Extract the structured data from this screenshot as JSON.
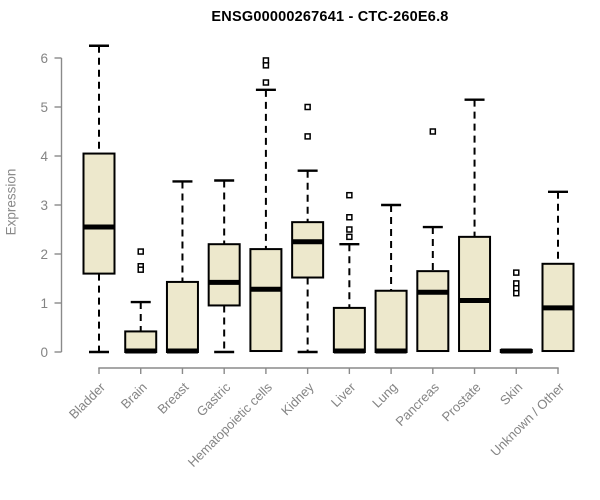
{
  "header": {
    "title": "ENSG00000267641 - CTC-260E6.8"
  },
  "colors": {
    "background": "#FFFFFF",
    "box_fill": "#EDE8CC",
    "box_stroke": "#000000",
    "median_stroke": "#000000",
    "axis": "#8A8A8A",
    "tick_label": "#848484",
    "title_text": "#000000"
  },
  "chart_data": {
    "type": "boxplot",
    "title": "ENSG00000267641 - CTC-260E6.8",
    "xlabel": "",
    "ylabel": "Expression",
    "ylim": [
      0,
      6
    ],
    "yticks": [
      0,
      1,
      2,
      3,
      4,
      5,
      6
    ],
    "grid": false,
    "legend": "none",
    "categories": [
      "Bladder",
      "Brain",
      "Breast",
      "Gastric",
      "Hematopoietic cells",
      "Kidney",
      "Liver",
      "Lung",
      "Pancreas",
      "Prostate",
      "Skin",
      "Unknown / Other"
    ],
    "boxes": [
      {
        "label": "Bladder",
        "whisker_low": 0,
        "q1": 1.6,
        "median": 2.55,
        "q3": 4.05,
        "whisker_high": 6.25,
        "outliers": []
      },
      {
        "label": "Brain",
        "whisker_low": 0,
        "q1": 0,
        "median": 0.02,
        "q3": 0.42,
        "whisker_high": 1.02,
        "outliers": [
          2.05,
          1.75,
          1.68
        ]
      },
      {
        "label": "Breast",
        "whisker_low": 0,
        "q1": 0,
        "median": 0.02,
        "q3": 1.43,
        "whisker_high": 3.48,
        "outliers": []
      },
      {
        "label": "Gastric",
        "whisker_low": 0,
        "q1": 0.95,
        "median": 1.42,
        "q3": 2.2,
        "whisker_high": 3.5,
        "outliers": []
      },
      {
        "label": "Hematopoietic cells",
        "whisker_low": 0,
        "q1": 0.02,
        "median": 1.28,
        "q3": 2.1,
        "whisker_high": 5.35,
        "outliers": [
          5.95,
          5.85,
          5.5
        ]
      },
      {
        "label": "Kidney",
        "whisker_low": 0,
        "q1": 1.52,
        "median": 2.25,
        "q3": 2.65,
        "whisker_high": 3.7,
        "outliers": [
          5.0,
          4.4
        ]
      },
      {
        "label": "Liver",
        "whisker_low": 0,
        "q1": 0,
        "median": 0.02,
        "q3": 0.9,
        "whisker_high": 2.2,
        "outliers": [
          3.2,
          2.75,
          2.5,
          2.35
        ]
      },
      {
        "label": "Lung",
        "whisker_low": 0,
        "q1": 0,
        "median": 0.02,
        "q3": 1.25,
        "whisker_high": 3.0,
        "outliers": []
      },
      {
        "label": "Pancreas",
        "whisker_low": 0,
        "q1": 0.02,
        "median": 1.22,
        "q3": 1.65,
        "whisker_high": 2.55,
        "outliers": [
          4.5
        ]
      },
      {
        "label": "Prostate",
        "whisker_low": 0,
        "q1": 0.02,
        "median": 1.05,
        "q3": 2.35,
        "whisker_high": 5.15,
        "outliers": []
      },
      {
        "label": "Skin",
        "whisker_low": 0,
        "q1": 0,
        "median": 0.02,
        "q3": 0.04,
        "whisker_high": 0.04,
        "outliers": [
          1.62,
          1.4,
          1.3,
          1.2
        ]
      },
      {
        "label": "Unknown / Other",
        "whisker_low": 0,
        "q1": 0.02,
        "median": 0.9,
        "q3": 1.8,
        "whisker_high": 3.27,
        "outliers": []
      }
    ]
  }
}
